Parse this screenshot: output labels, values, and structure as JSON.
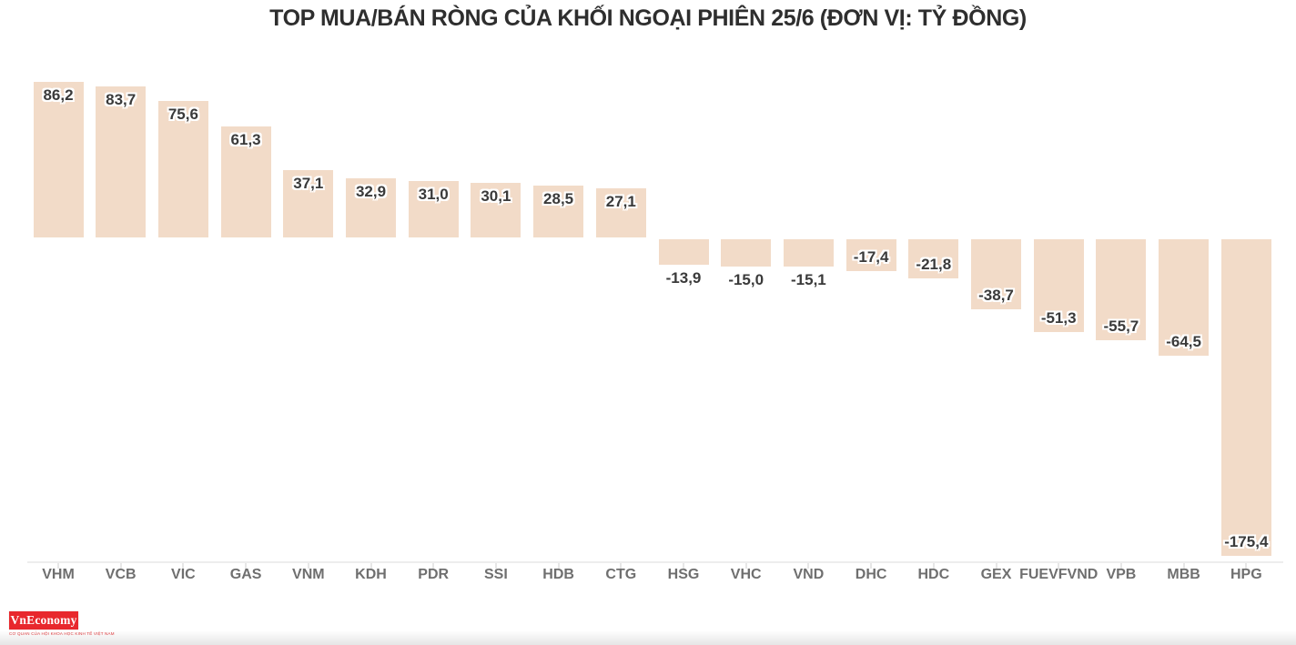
{
  "title": "TOP MUA/BÁN RÒNG CỦA KHỐI NGOẠI PHIÊN 25/6 (ĐƠN VỊ: TỶ ĐỒNG)",
  "chart_data": {
    "type": "bar",
    "title": "TOP MUA/BÁN RÒNG CỦA KHỐI NGOẠI PHIÊN 25/6 (ĐƠN VỊ: TỶ ĐỒNG)",
    "unit": "tỷ đồng",
    "categories": [
      "VHM",
      "VCB",
      "VIC",
      "GAS",
      "VNM",
      "KDH",
      "PDR",
      "SSI",
      "HDB",
      "CTG",
      "HSG",
      "VHC",
      "VND",
      "DHC",
      "HDC",
      "GEX",
      "FUEVFVND",
      "VPB",
      "MBB",
      "HPG"
    ],
    "values": [
      86.2,
      83.7,
      75.6,
      61.3,
      37.1,
      32.9,
      31.0,
      30.1,
      28.5,
      27.1,
      -13.9,
      -15.0,
      -15.1,
      -17.4,
      -21.8,
      -38.7,
      -51.3,
      -55.7,
      -64.5,
      -175.4
    ],
    "value_labels": [
      "86,2",
      "83,7",
      "75,6",
      "61,3",
      "37,1",
      "32,9",
      "31,0",
      "30,1",
      "28,5",
      "27,1",
      "-13,9",
      "-15,0",
      "-15,1",
      "-17,4",
      "-21,8",
      "-38,7",
      "-51,3",
      "-55,7",
      "-64,5",
      "-175,4"
    ],
    "xlabel": "",
    "ylabel": "",
    "ylim": [
      -180,
      90
    ],
    "grid": false,
    "legend": "none",
    "bar_color": "#f2dbc8"
  },
  "colors": {
    "bar_fill": "#f2dbc8",
    "title_text": "#2e2e2e",
    "value_label_text": "#3a3a3a",
    "axis_label_text": "#6f6f6f",
    "axis_line": "#ededed",
    "logo_red": "#e8282d"
  },
  "branding": {
    "logo_text": "VnEconomy",
    "logo_tagline": "CƠ QUAN CỦA HỘI KHOA HỌC KINH TẾ VIỆT NAM"
  }
}
